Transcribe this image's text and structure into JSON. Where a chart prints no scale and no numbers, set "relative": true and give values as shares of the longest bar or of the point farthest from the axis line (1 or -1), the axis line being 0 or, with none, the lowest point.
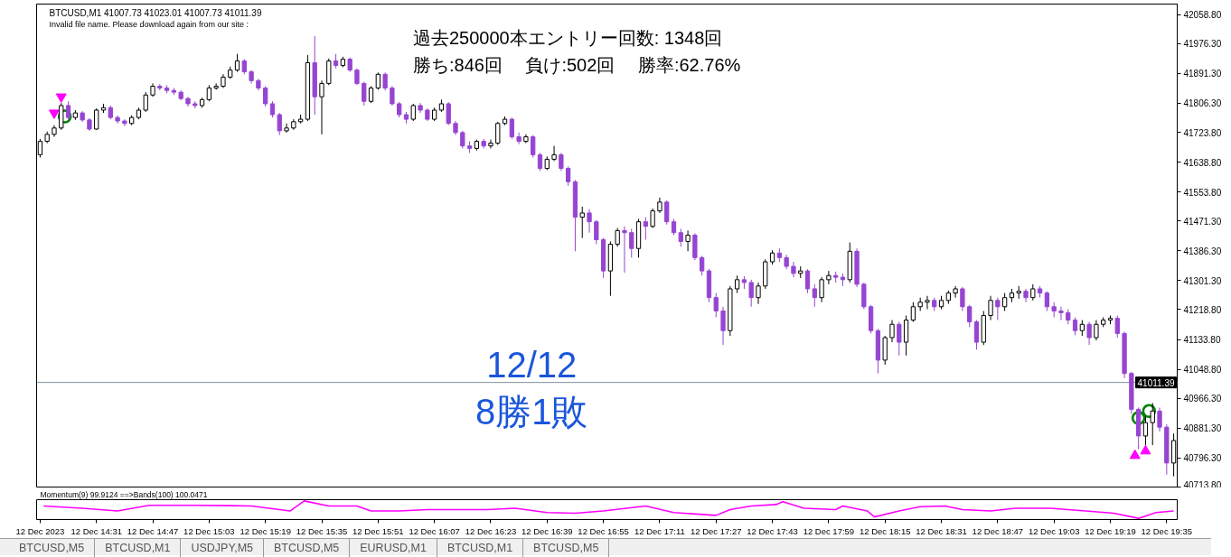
{
  "chart_data": [
    {
      "type": "candlestick",
      "title": "BTCUSD,M1 41007.73 41023.01 41007.73 41011.39",
      "subtitle": "Invalid file name. Please download again from our site :",
      "annotations": [
        "過去250000本エントリー回数: 1348回",
        "勝ち:846回　 負け:502回　 勝率:62.76%",
        "12/12",
        "8勝1敗",
        "BTCUSD,M5",
        "BTCUSD,M1",
        "USDJPY,M5",
        "BTCUSD,M5",
        "EURUSD,M1",
        "BTCUSD,M1",
        "BTCUSD,M5"
      ],
      "x": [
        "2023-12-12T14:15",
        "2023-12-12T14:17",
        "2023-12-12T14:19",
        "2023-12-12T14:21",
        "2023-12-12T14:23",
        "2023-12-12T14:25",
        "2023-12-12T14:27",
        "2023-12-12T14:29",
        "2023-12-12T14:31",
        "2023-12-12T14:33",
        "2023-12-12T14:35",
        "2023-12-12T14:37",
        "2023-12-12T14:39",
        "2023-12-12T14:41",
        "2023-12-12T14:43",
        "2023-12-12T14:45",
        "2023-12-12T14:47",
        "2023-12-12T14:49",
        "2023-12-12T14:51",
        "2023-12-12T14:53",
        "2023-12-12T14:55",
        "2023-12-12T14:57",
        "2023-12-12T14:59",
        "2023-12-12T15:01",
        "2023-12-12T15:03",
        "2023-12-12T15:05",
        "2023-12-12T15:07",
        "2023-12-12T15:09",
        "2023-12-12T15:11",
        "2023-12-12T15:13",
        "2023-12-12T15:15",
        "2023-12-12T15:17",
        "2023-12-12T15:19",
        "2023-12-12T15:21",
        "2023-12-12T15:23",
        "2023-12-12T15:25",
        "2023-12-12T15:27",
        "2023-12-12T15:29",
        "2023-12-12T15:31",
        "2023-12-12T15:33",
        "2023-12-12T15:35",
        "2023-12-12T15:37",
        "2023-12-12T15:39",
        "2023-12-12T15:41",
        "2023-12-12T15:43",
        "2023-12-12T15:45",
        "2023-12-12T15:47",
        "2023-12-12T15:49",
        "2023-12-12T15:51",
        "2023-12-12T15:53",
        "2023-12-12T15:55",
        "2023-12-12T15:57",
        "2023-12-12T15:59",
        "2023-12-12T16:01",
        "2023-12-12T16:03",
        "2023-12-12T16:05",
        "2023-12-12T16:07",
        "2023-12-12T16:09",
        "2023-12-12T16:11",
        "2023-12-12T16:13",
        "2023-12-12T16:15",
        "2023-12-12T16:17",
        "2023-12-12T16:19",
        "2023-12-12T16:21",
        "2023-12-12T16:23",
        "2023-12-12T16:25",
        "2023-12-12T16:27",
        "2023-12-12T16:29",
        "2023-12-12T16:31",
        "2023-12-12T16:33",
        "2023-12-12T16:35",
        "2023-12-12T16:37",
        "2023-12-12T16:39",
        "2023-12-12T16:41",
        "2023-12-12T16:43",
        "2023-12-12T16:45",
        "2023-12-12T16:47",
        "2023-12-12T16:49",
        "2023-12-12T16:51",
        "2023-12-12T16:53",
        "2023-12-12T16:55",
        "2023-12-12T16:57",
        "2023-12-12T16:59",
        "2023-12-12T17:01",
        "2023-12-12T17:03",
        "2023-12-12T17:05",
        "2023-12-12T17:07",
        "2023-12-12T17:09",
        "2023-12-12T17:11",
        "2023-12-12T17:13",
        "2023-12-12T17:15",
        "2023-12-12T17:17",
        "2023-12-12T17:19",
        "2023-12-12T17:21",
        "2023-12-12T17:23",
        "2023-12-12T17:25",
        "2023-12-12T17:27",
        "2023-12-12T17:29",
        "2023-12-12T17:31",
        "2023-12-12T17:33",
        "2023-12-12T17:35",
        "2023-12-12T17:37",
        "2023-12-12T17:39",
        "2023-12-12T17:41",
        "2023-12-12T17:43",
        "2023-12-12T17:45",
        "2023-12-12T17:47",
        "2023-12-12T17:49",
        "2023-12-12T17:51",
        "2023-12-12T17:53",
        "2023-12-12T17:55",
        "2023-12-12T17:57",
        "2023-12-12T17:59",
        "2023-12-12T18:01",
        "2023-12-12T18:03",
        "2023-12-12T18:05",
        "2023-12-12T18:07",
        "2023-12-12T18:09",
        "2023-12-12T18:11",
        "2023-12-12T18:13",
        "2023-12-12T18:15",
        "2023-12-12T18:17",
        "2023-12-12T18:19",
        "2023-12-12T18:21",
        "2023-12-12T18:23",
        "2023-12-12T18:25",
        "2023-12-12T18:27",
        "2023-12-12T18:29",
        "2023-12-12T18:31",
        "2023-12-12T18:33",
        "2023-12-12T18:35",
        "2023-12-12T18:37",
        "2023-12-12T18:39",
        "2023-12-12T18:41",
        "2023-12-12T18:43",
        "2023-12-12T18:45",
        "2023-12-12T18:47",
        "2023-12-12T18:49",
        "2023-12-12T18:51",
        "2023-12-12T18:53",
        "2023-12-12T18:55",
        "2023-12-12T18:57",
        "2023-12-12T18:59",
        "2023-12-12T19:01",
        "2023-12-12T19:03",
        "2023-12-12T19:05",
        "2023-12-12T19:07",
        "2023-12-12T19:09",
        "2023-12-12T19:11",
        "2023-12-12T19:13",
        "2023-12-12T19:15",
        "2023-12-12T19:17",
        "2023-12-12T19:19",
        "2023-12-12T19:21",
        "2023-12-12T19:23",
        "2023-12-12T19:25",
        "2023-12-12T19:27",
        "2023-12-12T19:29",
        "2023-12-12T19:31",
        "2023-12-12T19:33",
        "2023-12-12T19:35",
        "2023-12-12T19:37"
      ],
      "ohlc": [
        [
          41660,
          41705,
          41652,
          41698
        ],
        [
          41698,
          41726,
          41693,
          41718
        ],
        [
          41718,
          41744,
          41711,
          41736
        ],
        [
          41736,
          41807,
          41731,
          41800
        ],
        [
          41800,
          41812,
          41761,
          41766
        ],
        [
          41766,
          41787,
          41759,
          41779
        ],
        [
          41779,
          41784,
          41754,
          41759
        ],
        [
          41759,
          41764,
          41728,
          41733
        ],
        [
          41733,
          41792,
          41731,
          41787
        ],
        [
          41787,
          41805,
          41779,
          41794
        ],
        [
          41794,
          41800,
          41761,
          41766
        ],
        [
          41766,
          41772,
          41749,
          41756
        ],
        [
          41756,
          41761,
          41741,
          41749
        ],
        [
          41749,
          41772,
          41744,
          41766
        ],
        [
          41766,
          41794,
          41761,
          41787
        ],
        [
          41787,
          41838,
          41782,
          41830
        ],
        [
          41830,
          41863,
          41825,
          41855
        ],
        [
          41855,
          41861,
          41843,
          41850
        ],
        [
          41850,
          41858,
          41835,
          41843
        ],
        [
          41843,
          41850,
          41830,
          41838
        ],
        [
          41838,
          41843,
          41815,
          41820
        ],
        [
          41820,
          41825,
          41797,
          41805
        ],
        [
          41805,
          41812,
          41792,
          41800
        ],
        [
          41800,
          41822,
          41794,
          41817
        ],
        [
          41817,
          41858,
          41812,
          41850
        ],
        [
          41850,
          41863,
          41845,
          41855
        ],
        [
          41855,
          41889,
          41850,
          41881
        ],
        [
          41881,
          41911,
          41876,
          41901
        ],
        [
          41901,
          41947,
          41896,
          41927
        ],
        [
          41927,
          41932,
          41889,
          41896
        ],
        [
          41896,
          41901,
          41863,
          41871
        ],
        [
          41871,
          41876,
          41843,
          41850
        ],
        [
          41850,
          41855,
          41797,
          41805
        ],
        [
          41805,
          41812,
          41766,
          41774
        ],
        [
          41774,
          41779,
          41716,
          41728
        ],
        [
          41728,
          41749,
          41723,
          41736
        ],
        [
          41736,
          41761,
          41731,
          41754
        ],
        [
          41754,
          41774,
          41749,
          41761
        ],
        [
          41761,
          41944,
          41756,
          41922
        ],
        [
          41922,
          41998,
          41774,
          41825
        ],
        [
          41825,
          41871,
          41718,
          41863
        ],
        [
          41863,
          41934,
          41858,
          41927
        ],
        [
          41927,
          41947,
          41906,
          41914
        ],
        [
          41914,
          41939,
          41909,
          41932
        ],
        [
          41932,
          41937,
          41896,
          41901
        ],
        [
          41901,
          41906,
          41858,
          41863
        ],
        [
          41863,
          41868,
          41800,
          41812
        ],
        [
          41812,
          41855,
          41807,
          41850
        ],
        [
          41850,
          41894,
          41845,
          41889
        ],
        [
          41889,
          41894,
          41843,
          41850
        ],
        [
          41850,
          41855,
          41800,
          41805
        ],
        [
          41805,
          41810,
          41766,
          41774
        ],
        [
          41774,
          41782,
          41749,
          41761
        ],
        [
          41761,
          41805,
          41756,
          41800
        ],
        [
          41800,
          41807,
          41779,
          41787
        ],
        [
          41787,
          41792,
          41756,
          41761
        ],
        [
          41761,
          41794,
          41756,
          41787
        ],
        [
          41787,
          41817,
          41782,
          41805
        ],
        [
          41805,
          41810,
          41744,
          41749
        ],
        [
          41749,
          41756,
          41716,
          41723
        ],
        [
          41723,
          41728,
          41678,
          41685
        ],
        [
          41685,
          41698,
          41665,
          41678
        ],
        [
          41678,
          41703,
          41672,
          41698
        ],
        [
          41698,
          41705,
          41678,
          41685
        ],
        [
          41685,
          41703,
          41678,
          41693
        ],
        [
          41693,
          41754,
          41688,
          41749
        ],
        [
          41749,
          41769,
          41744,
          41761
        ],
        [
          41761,
          41766,
          41705,
          41711
        ],
        [
          41711,
          41723,
          41690,
          41698
        ],
        [
          41698,
          41718,
          41693,
          41711
        ],
        [
          41711,
          41716,
          41652,
          41660
        ],
        [
          41660,
          41665,
          41614,
          41621
        ],
        [
          41621,
          41655,
          41616,
          41647
        ],
        [
          41647,
          41685,
          41642,
          41660
        ],
        [
          41660,
          41665,
          41614,
          41621
        ],
        [
          41621,
          41627,
          41571,
          41583
        ],
        [
          41583,
          41588,
          41385,
          41482
        ],
        [
          41482,
          41512,
          41423,
          41494
        ],
        [
          41494,
          41505,
          41438,
          41469
        ],
        [
          41469,
          41474,
          41405,
          41418
        ],
        [
          41418,
          41423,
          41309,
          41329
        ],
        [
          41329,
          41413,
          41258,
          41405
        ],
        [
          41405,
          41451,
          41398,
          41444
        ],
        [
          41444,
          41456,
          41324,
          41438
        ],
        [
          41438,
          41449,
          41367,
          41393
        ],
        [
          41393,
          41477,
          41367,
          41469
        ],
        [
          41469,
          41482,
          41418,
          41456
        ],
        [
          41456,
          41507,
          41451,
          41500
        ],
        [
          41500,
          41538,
          41494,
          41525
        ],
        [
          41525,
          41530,
          41461,
          41469
        ],
        [
          41469,
          41477,
          41431,
          41438
        ],
        [
          41438,
          41449,
          41398,
          41413
        ],
        [
          41413,
          41444,
          41385,
          41431
        ],
        [
          41431,
          41436,
          41360,
          41367
        ],
        [
          41367,
          41372,
          41316,
          41329
        ],
        [
          41329,
          41334,
          41240,
          41253
        ],
        [
          41253,
          41266,
          41197,
          41215
        ],
        [
          41215,
          41227,
          41118,
          41159
        ],
        [
          41159,
          41286,
          41144,
          41278
        ],
        [
          41278,
          41316,
          41266,
          41304
        ],
        [
          41304,
          41314,
          41278,
          41296
        ],
        [
          41296,
          41304,
          41227,
          41253
        ],
        [
          41253,
          41296,
          41235,
          41286
        ],
        [
          41286,
          41362,
          41278,
          41355
        ],
        [
          41355,
          41388,
          41347,
          41380
        ],
        [
          41380,
          41393,
          41355,
          41367
        ],
        [
          41367,
          41375,
          41334,
          41342
        ],
        [
          41342,
          41355,
          41311,
          41322
        ],
        [
          41322,
          41342,
          41309,
          41329
        ],
        [
          41329,
          41334,
          41266,
          41278
        ],
        [
          41278,
          41291,
          41227,
          41253
        ],
        [
          41253,
          41311,
          41240,
          41304
        ],
        [
          41304,
          41329,
          41291,
          41316
        ],
        [
          41316,
          41327,
          41296,
          41311
        ],
        [
          41311,
          41322,
          41286,
          41304
        ],
        [
          41304,
          41410,
          41296,
          41385
        ],
        [
          41385,
          41393,
          41283,
          41291
        ],
        [
          41291,
          41296,
          41220,
          41227
        ],
        [
          41227,
          41232,
          41151,
          41159
        ],
        [
          41159,
          41164,
          41037,
          41075
        ],
        [
          41075,
          41144,
          41062,
          41139
        ],
        [
          41139,
          41189,
          41126,
          41177
        ],
        [
          41177,
          41184,
          41088,
          41126
        ],
        [
          41126,
          41202,
          41088,
          41189
        ],
        [
          41189,
          41240,
          41184,
          41227
        ],
        [
          41227,
          41253,
          41215,
          41240
        ],
        [
          41240,
          41258,
          41220,
          41245
        ],
        [
          41245,
          41253,
          41215,
          41227
        ],
        [
          41227,
          41258,
          41220,
          41245
        ],
        [
          41245,
          41273,
          41235,
          41266
        ],
        [
          41266,
          41286,
          41253,
          41278
        ],
        [
          41278,
          41283,
          41215,
          41227
        ],
        [
          41227,
          41232,
          41169,
          41184
        ],
        [
          41184,
          41189,
          41105,
          41126
        ],
        [
          41126,
          41215,
          41118,
          41202
        ],
        [
          41202,
          41258,
          41189,
          41245
        ],
        [
          41245,
          41253,
          41189,
          41227
        ],
        [
          41227,
          41266,
          41215,
          41253
        ],
        [
          41253,
          41278,
          41240,
          41266
        ],
        [
          41266,
          41286,
          41250,
          41271
        ],
        [
          41271,
          41278,
          41240,
          41253
        ],
        [
          41253,
          41291,
          41245,
          41278
        ],
        [
          41278,
          41286,
          41253,
          41266
        ],
        [
          41266,
          41271,
          41215,
          41227
        ],
        [
          41227,
          41240,
          41197,
          41215
        ],
        [
          41215,
          41227,
          41189,
          41210
        ],
        [
          41210,
          41220,
          41177,
          41189
        ],
        [
          41189,
          41197,
          41146,
          41159
        ],
        [
          41159,
          41189,
          41144,
          41177
        ],
        [
          41177,
          41184,
          41118,
          41139
        ],
        [
          41139,
          41189,
          41131,
          41177
        ],
        [
          41177,
          41197,
          41169,
          41189
        ],
        [
          41189,
          41202,
          41177,
          41194
        ],
        [
          41194,
          41202,
          41139,
          41151
        ],
        [
          41151,
          41156,
          41024,
          41037
        ],
        [
          41037,
          41042,
          40922,
          40935
        ],
        [
          40935,
          40940,
          40821,
          40859
        ],
        [
          40859,
          40915,
          40833,
          40897
        ],
        [
          40897,
          40953,
          40833,
          40930
        ],
        [
          40930,
          40940,
          40872,
          40884
        ],
        [
          40884,
          40892,
          40749,
          40782
        ],
        [
          40782,
          40866,
          40744,
          40846
        ]
      ],
      "colors": [
        "#ffffff",
        "#ffffff",
        "#ffffff",
        "#ffffff",
        "#9645d2",
        "#ffffff",
        "#9645d2",
        "#9645d2",
        "#ffffff",
        "#ffffff",
        "#9645d2",
        "#9645d2",
        "#9645d2",
        "#ffffff",
        "#ffffff",
        "#ffffff",
        "#ffffff",
        "#9645d2",
        "#9645d2",
        "#9645d2",
        "#9645d2",
        "#9645d2",
        "#9645d2",
        "#ffffff",
        "#ffffff",
        "#ffffff",
        "#ffffff",
        "#ffffff",
        "#ffffff",
        "#9645d2",
        "#9645d2",
        "#9645d2",
        "#9645d2",
        "#9645d2",
        "#9645d2",
        "#ffffff",
        "#ffffff",
        "#ffffff",
        "#ffffff",
        "#9645d2",
        "#ffffff",
        "#ffffff",
        "#9645d2",
        "#ffffff",
        "#9645d2",
        "#9645d2",
        "#9645d2",
        "#ffffff",
        "#ffffff",
        "#9645d2",
        "#9645d2",
        "#9645d2",
        "#9645d2",
        "#ffffff",
        "#9645d2",
        "#9645d2",
        "#ffffff",
        "#ffffff",
        "#9645d2",
        "#9645d2",
        "#9645d2",
        "#9645d2",
        "#ffffff",
        "#9645d2",
        "#ffffff",
        "#ffffff",
        "#ffffff",
        "#9645d2",
        "#9645d2",
        "#ffffff",
        "#9645d2",
        "#9645d2",
        "#ffffff",
        "#ffffff",
        "#9645d2",
        "#9645d2",
        "#9645d2",
        "#ffffff",
        "#9645d2",
        "#9645d2",
        "#9645d2",
        "#ffffff",
        "#ffffff",
        "#9645d2",
        "#9645d2",
        "#ffffff",
        "#9645d2",
        "#ffffff",
        "#ffffff",
        "#9645d2",
        "#9645d2",
        "#9645d2",
        "#ffffff",
        "#9645d2",
        "#9645d2",
        "#9645d2",
        "#9645d2",
        "#9645d2",
        "#ffffff",
        "#ffffff",
        "#9645d2",
        "#9645d2",
        "#ffffff",
        "#ffffff",
        "#ffffff",
        "#9645d2",
        "#9645d2",
        "#9645d2",
        "#ffffff",
        "#9645d2",
        "#9645d2",
        "#ffffff",
        "#ffffff",
        "#9645d2",
        "#9645d2",
        "#ffffff",
        "#9645d2",
        "#9645d2",
        "#9645d2",
        "#9645d2",
        "#ffffff",
        "#ffffff",
        "#9645d2",
        "#ffffff",
        "#ffffff",
        "#ffffff",
        "#ffffff",
        "#9645d2",
        "#ffffff",
        "#ffffff",
        "#ffffff",
        "#9645d2",
        "#9645d2",
        "#9645d2",
        "#ffffff",
        "#ffffff",
        "#9645d2",
        "#ffffff",
        "#ffffff",
        "#ffffff",
        "#9645d2",
        "#ffffff",
        "#9645d2",
        "#9645d2",
        "#9645d2",
        "#9645d2",
        "#9645d2",
        "#9645d2",
        "#ffffff",
        "#9645d2",
        "#ffffff",
        "#ffffff",
        "#ffffff",
        "#9645d2",
        "#9645d2",
        "#9645d2",
        "#9645d2",
        "#ffffff",
        "#ffffff",
        "#9645d2",
        "#9645d2",
        "#ffffff"
      ],
      "series": [
        {
          "type": "scatter",
          "color": "#ff00ff",
          "marker": "triangle",
          "x": [
            "2023-12-12T14:19",
            "2023-12-12T14:21"
          ],
          "values": [
            41779,
            41825
          ]
        },
        {
          "type": "scatter",
          "color": "#ff00ff",
          "marker": "triangle",
          "x": [
            "2023-12-12T19:26",
            "2023-12-12T19:29"
          ],
          "values": [
            40803,
            40816
          ]
        },
        {
          "type": "scatter",
          "color": "#008000",
          "marker": "circle",
          "x": [
            "2023-12-12T14:22",
            "2023-12-12T19:27",
            "2023-12-12T19:30"
          ],
          "values": [
            41769,
            40910,
            40930
          ]
        }
      ],
      "xlim": [
        "2023-12-12T14:14",
        "2023-12-12T19:38"
      ],
      "ylim": [
        40711,
        42089
      ],
      "yticks": [
        {
          "value": 42058.8,
          "label": "42058.80"
        },
        {
          "value": 41976.3,
          "label": "41976.30"
        },
        {
          "value": 41891.3,
          "label": "41891.30"
        },
        {
          "value": 41806.3,
          "label": "41806.30"
        },
        {
          "value": 41723.8,
          "label": "41723.80"
        },
        {
          "value": 41638.8,
          "label": "41638.80"
        },
        {
          "value": 41553.8,
          "label": "41553.80"
        },
        {
          "value": 41471.3,
          "label": "41471.30"
        },
        {
          "value": 41386.3,
          "label": "41386.30"
        },
        {
          "value": 41301.3,
          "label": "41301.30"
        },
        {
          "value": 41218.8,
          "label": "41218.80"
        },
        {
          "value": 41133.8,
          "label": "41133.80"
        },
        {
          "value": 41048.8,
          "label": "41048.80"
        },
        {
          "value": 40966.3,
          "label": "40966.30"
        },
        {
          "value": 40881.3,
          "label": "40881.30"
        },
        {
          "value": 40796.3,
          "label": "40796.30"
        },
        {
          "value": 40713.8,
          "label": "40713.80"
        }
      ],
      "ref_lines": [
        {
          "axis": "y",
          "value": 41011.39,
          "label": "41011.39",
          "color": "#7f8f9a"
        }
      ],
      "tick_labels": "y",
      "grid": false
    },
    {
      "type": "line",
      "title": "Momentum(9) 99.9124 ==>Bands(100) 100.0471",
      "relative": true,
      "series": [
        {
          "color": "#ff00ff",
          "x": [
            "2023-12-12T14:16",
            "2023-12-12T14:27",
            "2023-12-12T14:37",
            "2023-12-12T14:46",
            "2023-12-12T14:59",
            "2023-12-12T15:15",
            "2023-12-12T15:26",
            "2023-12-12T15:30",
            "2023-12-12T15:37",
            "2023-12-12T15:45",
            "2023-12-12T15:49",
            "2023-12-12T15:57",
            "2023-12-12T16:05",
            "2023-12-12T16:15",
            "2023-12-12T16:22",
            "2023-12-12T16:30",
            "2023-12-12T16:39",
            "2023-12-12T16:47",
            "2023-12-12T16:55",
            "2023-12-12T17:07",
            "2023-12-12T17:15",
            "2023-12-12T17:27",
            "2023-12-12T17:31",
            "2023-12-12T17:37",
            "2023-12-12T17:44",
            "2023-12-12T17:46",
            "2023-12-12T17:52",
            "2023-12-12T18:01",
            "2023-12-12T18:03",
            "2023-12-12T18:10",
            "2023-12-12T18:12",
            "2023-12-12T18:19",
            "2023-12-12T18:25",
            "2023-12-12T18:32",
            "2023-12-12T18:37",
            "2023-12-12T18:45",
            "2023-12-12T18:52",
            "2023-12-12T19:02",
            "2023-12-12T19:12",
            "2023-12-12T19:20",
            "2023-12-12T19:27",
            "2023-12-12T19:32",
            "2023-12-12T19:37"
          ],
          "values": [
            0.71,
            0.58,
            0.42,
            0.75,
            0.75,
            0.71,
            0.42,
            1,
            0.71,
            0.71,
            0.42,
            0.42,
            0.5,
            0.5,
            0.5,
            0.58,
            0.33,
            0.29,
            0.42,
            0.71,
            0.33,
            0.17,
            0.5,
            0.71,
            0.79,
            0.95,
            0.58,
            0.5,
            0.71,
            0.42,
            0.08,
            0.42,
            0.67,
            0.71,
            0.5,
            0.42,
            0.58,
            0.58,
            0.42,
            0.29,
            0,
            0.33,
            0.42
          ]
        }
      ],
      "xlim": [
        "2023-12-12T14:14",
        "2023-12-12T19:38"
      ],
      "xticks": [
        {
          "value": "2023-12-12T14:15",
          "label": "12 Dec 2023"
        },
        {
          "value": "2023-12-12T14:31",
          "label": "12 Dec 14:31"
        },
        {
          "value": "2023-12-12T14:47",
          "label": "12 Dec 14:47"
        },
        {
          "value": "2023-12-12T15:03",
          "label": "12 Dec 15:03"
        },
        {
          "value": "2023-12-12T15:19",
          "label": "12 Dec 15:19"
        },
        {
          "value": "2023-12-12T15:35",
          "label": "12 Dec 15:35"
        },
        {
          "value": "2023-12-12T15:51",
          "label": "12 Dec 15:51"
        },
        {
          "value": "2023-12-12T16:07",
          "label": "12 Dec 16:07"
        },
        {
          "value": "2023-12-12T16:23",
          "label": "12 Dec 16:23"
        },
        {
          "value": "2023-12-12T16:39",
          "label": "12 Dec 16:39"
        },
        {
          "value": "2023-12-12T16:55",
          "label": "12 Dec 16:55"
        },
        {
          "value": "2023-12-12T17:11",
          "label": "12 Dec 17:11"
        },
        {
          "value": "2023-12-12T17:27",
          "label": "12 Dec 17:27"
        },
        {
          "value": "2023-12-12T17:43",
          "label": "12 Dec 17:43"
        },
        {
          "value": "2023-12-12T17:59",
          "label": "12 Dec 17:59"
        },
        {
          "value": "2023-12-12T18:15",
          "label": "12 Dec 18:15"
        },
        {
          "value": "2023-12-12T18:31",
          "label": "12 Dec 18:31"
        },
        {
          "value": "2023-12-12T18:47",
          "label": "12 Dec 18:47"
        },
        {
          "value": "2023-12-12T19:03",
          "label": "12 Dec 19:03"
        },
        {
          "value": "2023-12-12T19:19",
          "label": "12 Dec 19:19"
        },
        {
          "value": "2023-12-12T19:35",
          "label": "12 Dec 19:35"
        }
      ],
      "tick_labels": "x",
      "grid": false
    }
  ]
}
